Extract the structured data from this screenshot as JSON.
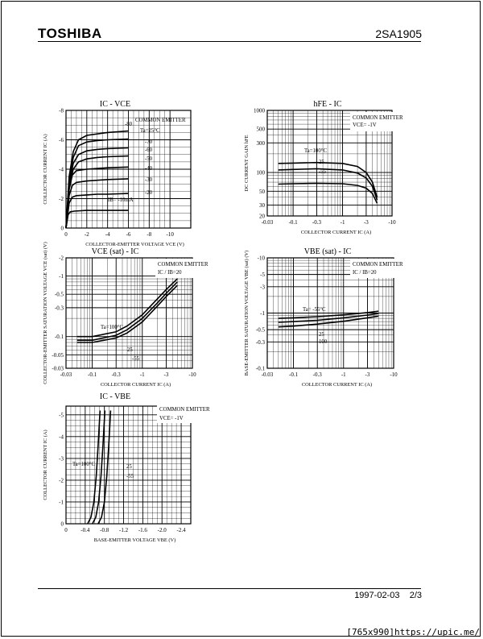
{
  "header": {
    "brand": "TOSHIBA",
    "part_number": "2SA1905"
  },
  "footer": {
    "date": "1997-02-03",
    "page": "2/3"
  },
  "watermark": "[765x990]https://upic.me/",
  "chart_data": [
    {
      "type": "line",
      "title": "IC - VCE",
      "xlabel": "COLLECTOR-EMITTER VOLTAGE VCE (V)",
      "ylabel": "COLLECTOR CURRENT IC (A)",
      "xlim": [
        0,
        -12
      ],
      "ylim": [
        0,
        -8
      ],
      "xticks": [
        "0",
        "-2",
        "-4",
        "-6",
        "-8",
        "-10"
      ],
      "yticks": [
        "0",
        "-2",
        "-4",
        "-6",
        "-8"
      ],
      "annotations": [
        "COMMON EMITTER",
        "Ta=25°C",
        "IB= -10mA"
      ],
      "series": [
        {
          "name": "-80",
          "x": [
            0,
            -0.3,
            -0.7,
            -1.2,
            -2,
            -3,
            -4,
            -6
          ],
          "y": [
            0,
            -3.5,
            -5.2,
            -6.0,
            -6.3,
            -6.4,
            -6.5,
            -6.6
          ]
        },
        {
          "name": "-70",
          "x": [
            0,
            -0.3,
            -0.7,
            -1.2,
            -2,
            -3,
            -4,
            -6
          ],
          "y": [
            0,
            -3.2,
            -4.8,
            -5.6,
            -5.85,
            -5.95,
            -6.0,
            -6.05
          ]
        },
        {
          "name": "-60",
          "x": [
            0,
            -0.3,
            -0.7,
            -1.2,
            -2,
            -3,
            -4,
            -6
          ],
          "y": [
            0,
            -3.0,
            -4.4,
            -5.0,
            -5.25,
            -5.35,
            -5.4,
            -5.45
          ]
        },
        {
          "name": "-50",
          "x": [
            0,
            -0.3,
            -0.7,
            -1.2,
            -2,
            -3,
            -4,
            -6
          ],
          "y": [
            0,
            -2.8,
            -4.0,
            -4.5,
            -4.7,
            -4.8,
            -4.85,
            -4.9
          ]
        },
        {
          "name": "-40",
          "x": [
            0,
            -0.3,
            -0.6,
            -1.0,
            -2,
            -3,
            -4,
            -6
          ],
          "y": [
            0,
            -2.6,
            -3.6,
            -3.9,
            -4.0,
            -4.05,
            -4.1,
            -4.15
          ]
        },
        {
          "name": "-30",
          "x": [
            0,
            -0.3,
            -0.6,
            -1.0,
            -2,
            -3,
            -4,
            -6
          ],
          "y": [
            0,
            -2.2,
            -2.9,
            -3.1,
            -3.2,
            -3.25,
            -3.3,
            -3.35
          ]
        },
        {
          "name": "-20",
          "x": [
            0,
            -0.3,
            -0.6,
            -1.0,
            -2,
            -3,
            -4,
            -6
          ],
          "y": [
            0,
            -1.7,
            -2.1,
            -2.2,
            -2.25,
            -2.3,
            -2.3,
            -2.35
          ]
        },
        {
          "name": "-10",
          "x": [
            0,
            -0.2,
            -0.4,
            -0.8,
            -2,
            -3,
            -4,
            -6
          ],
          "y": [
            0,
            -0.9,
            -1.1,
            -1.15,
            -1.2,
            -1.2,
            -1.2,
            -1.2
          ]
        }
      ]
    },
    {
      "type": "line",
      "title": "hFE - IC",
      "xlabel": "COLLECTOR CURRENT IC (A)",
      "ylabel": "DC CURRENT GAIN hFE",
      "xscale": "log",
      "yscale": "log",
      "xlim": [
        -0.03,
        -10
      ],
      "ylim": [
        20,
        1000
      ],
      "xticks": [
        "-0.03",
        "-0.1",
        "-0.3",
        "-1",
        "-3",
        "-10"
      ],
      "yticks": [
        "20",
        "30",
        "50",
        "100",
        "300",
        "500",
        "1000"
      ],
      "annotations": [
        "COMMON EMITTER",
        "VCE= -1V"
      ],
      "series": [
        {
          "name": "Ta=100°C",
          "x": [
            -0.05,
            -0.1,
            -0.3,
            -1,
            -2,
            -3,
            -4,
            -5
          ],
          "y": [
            140,
            142,
            145,
            140,
            125,
            100,
            70,
            40
          ]
        },
        {
          "name": "25",
          "x": [
            -0.05,
            -0.1,
            -0.3,
            -1,
            -2,
            -3,
            -4,
            -5
          ],
          "y": [
            110,
            112,
            115,
            110,
            98,
            82,
            60,
            36
          ]
        },
        {
          "name": "-55",
          "x": [
            -0.05,
            -0.1,
            -0.3,
            -1,
            -2,
            -3,
            -4,
            -5
          ],
          "y": [
            65,
            66,
            67,
            66,
            62,
            56,
            46,
            32
          ]
        }
      ]
    },
    {
      "type": "line",
      "title": "VCE (sat) - IC",
      "xlabel": "COLLECTOR CURRENT IC (A)",
      "ylabel": "COLLECTOR-EMITTER SATURATION VOLTAGE VCE (sat) (V)",
      "xscale": "log",
      "yscale": "log",
      "xlim": [
        -0.03,
        -10
      ],
      "ylim": [
        -0.03,
        -2
      ],
      "xticks": [
        "-0.03",
        "-0.1",
        "-0.3",
        "-1",
        "-3",
        "-10"
      ],
      "yticks": [
        "-0.03",
        "-0.05",
        "-0.1",
        "-0.3",
        "-0.5",
        "-1",
        "-2"
      ],
      "annotations": [
        "COMMON EMITTER",
        "IC / IB=20"
      ],
      "series": [
        {
          "name": "Ta=100°C",
          "x": [
            -0.05,
            -0.1,
            -0.3,
            -0.5,
            -1,
            -2,
            -3,
            -5
          ],
          "y": [
            -0.1,
            -0.1,
            -0.12,
            -0.15,
            -0.23,
            -0.42,
            -0.6,
            -0.9
          ]
        },
        {
          "name": "25",
          "x": [
            -0.05,
            -0.1,
            -0.3,
            -0.5,
            -1,
            -2,
            -3,
            -5
          ],
          "y": [
            -0.087,
            -0.087,
            -0.105,
            -0.13,
            -0.2,
            -0.36,
            -0.52,
            -0.8
          ]
        },
        {
          "name": "-55",
          "x": [
            -0.05,
            -0.1,
            -0.3,
            -0.5,
            -1,
            -2,
            -3,
            -5
          ],
          "y": [
            -0.08,
            -0.08,
            -0.095,
            -0.115,
            -0.175,
            -0.32,
            -0.46,
            -0.7
          ]
        }
      ]
    },
    {
      "type": "line",
      "title": "VBE (sat) - IC",
      "xlabel": "COLLECTOR CURRENT IC (A)",
      "ylabel": "BASE-EMITTER SATURATION VOLTAGE VBE (sat) (V)",
      "xscale": "log",
      "yscale": "log",
      "xlim": [
        -0.03,
        -10
      ],
      "ylim": [
        -0.1,
        -10
      ],
      "xticks": [
        "-0.03",
        "-0.1",
        "-0.3",
        "-1",
        "-3",
        "-10"
      ],
      "yticks": [
        "-0.1",
        "-0.3",
        "-0.5",
        "-1",
        "-3",
        "-5",
        "-10"
      ],
      "annotations": [
        "COMMON EMITTER",
        "IC / IB=20"
      ],
      "series": [
        {
          "name": "Ta= -55°C",
          "x": [
            -0.05,
            -0.1,
            -0.3,
            -1,
            -3,
            -5
          ],
          "y": [
            -0.8,
            -0.82,
            -0.86,
            -0.93,
            -1.02,
            -1.08
          ]
        },
        {
          "name": "25",
          "x": [
            -0.05,
            -0.1,
            -0.3,
            -1,
            -3,
            -5
          ],
          "y": [
            -0.68,
            -0.7,
            -0.74,
            -0.82,
            -0.92,
            -0.98
          ]
        },
        {
          "name": "100",
          "x": [
            -0.05,
            -0.1,
            -0.3,
            -1,
            -3,
            -5
          ],
          "y": [
            -0.56,
            -0.58,
            -0.63,
            -0.71,
            -0.82,
            -0.88
          ]
        }
      ]
    },
    {
      "type": "line",
      "title": "IC - VBE",
      "xlabel": "BASE-EMITTER VOLTAGE VBE (V)",
      "ylabel": "COLLECTOR CURRENT IC (A)",
      "xlim": [
        0,
        -2.6
      ],
      "ylim": [
        0,
        -5.4
      ],
      "xticks": [
        "0",
        "-0.4",
        "-0.8",
        "-1.2",
        "-1.6",
        "-2.0",
        "-2.4"
      ],
      "yticks": [
        "0",
        "-1",
        "-2",
        "-3",
        "-4",
        "-5"
      ],
      "annotations": [
        "COMMON EMITTER",
        "VCE= -1V"
      ],
      "series": [
        {
          "name": "Ta=100°C",
          "x": [
            -0.45,
            -0.52,
            -0.58,
            -0.63,
            -0.67,
            -0.71
          ],
          "y": [
            0,
            -0.3,
            -1.0,
            -2.2,
            -3.6,
            -5.2
          ]
        },
        {
          "name": "25",
          "x": [
            -0.55,
            -0.62,
            -0.68,
            -0.73,
            -0.77,
            -0.81
          ],
          "y": [
            0,
            -0.3,
            -1.0,
            -2.2,
            -3.6,
            -5.2
          ]
        },
        {
          "name": "-55",
          "x": [
            -0.67,
            -0.74,
            -0.8,
            -0.85,
            -0.89,
            -0.93
          ],
          "y": [
            0,
            -0.3,
            -1.0,
            -2.2,
            -3.6,
            -5.2
          ]
        }
      ]
    }
  ]
}
